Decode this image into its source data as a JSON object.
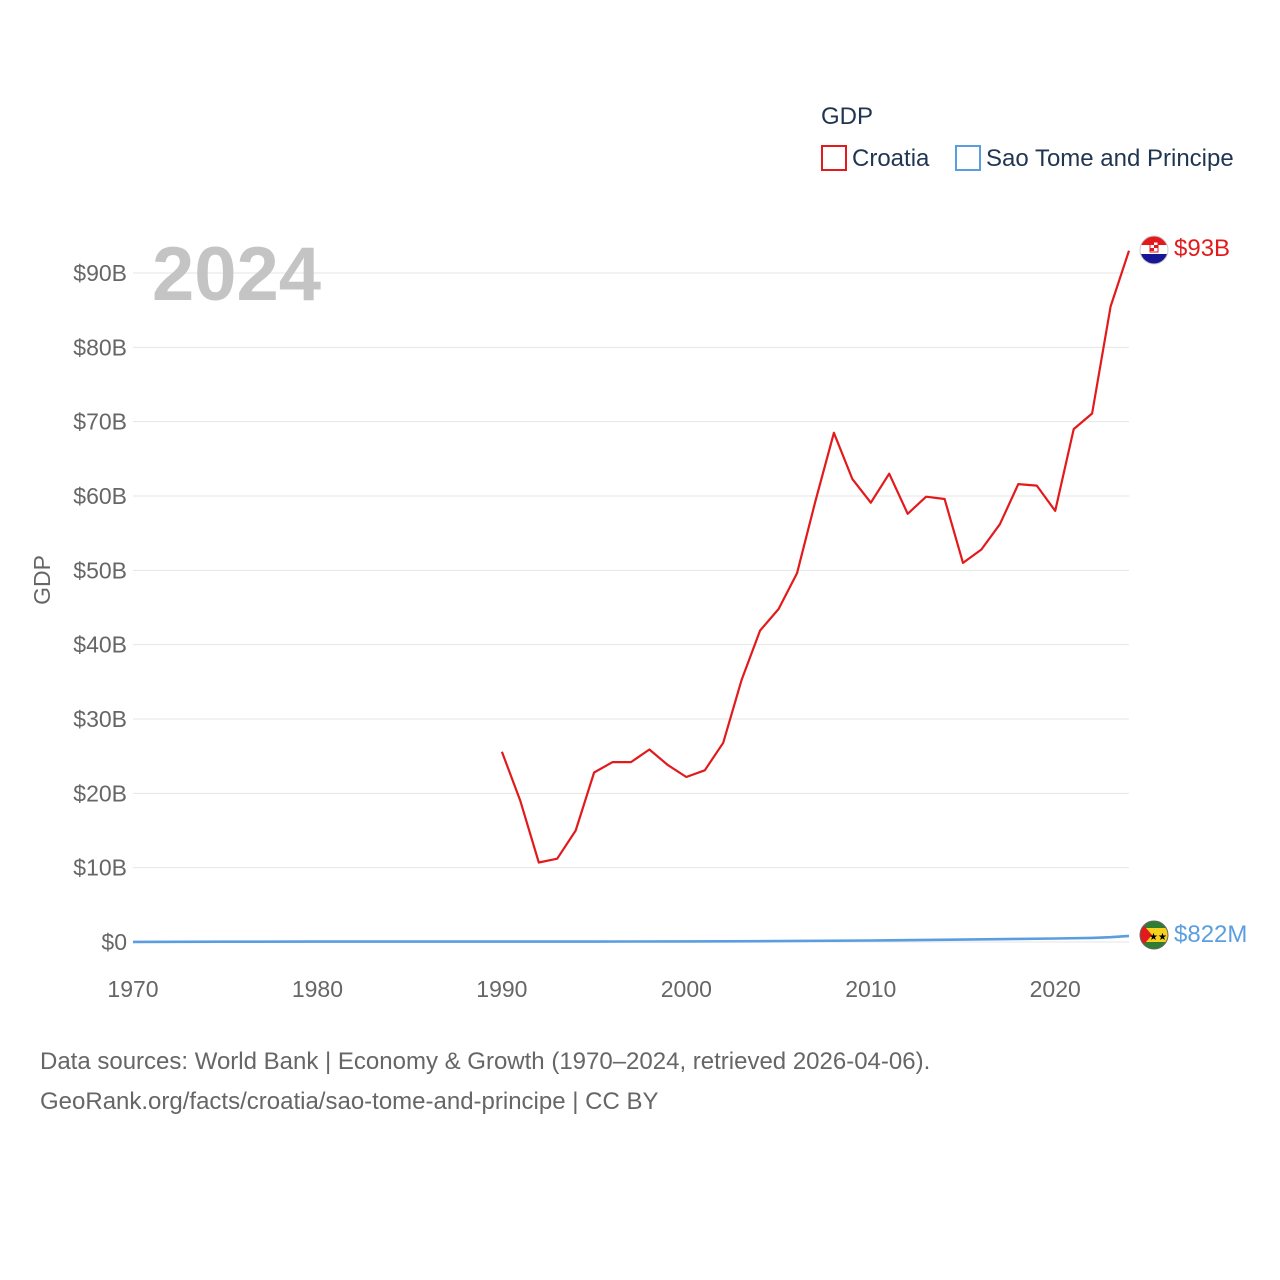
{
  "chart_data": {
    "type": "line",
    "legend_title": "GDP",
    "ylabel": "GDP",
    "year_label": "2024",
    "xlim": [
      1970,
      2024
    ],
    "ylim": [
      0,
      90
    ],
    "x_ticks": [
      1970,
      1980,
      1990,
      2000,
      2010,
      2020
    ],
    "x_tick_labels": [
      "1970",
      "1980",
      "1990",
      "2000",
      "2010",
      "2020"
    ],
    "y_ticks": [
      0,
      10,
      20,
      30,
      40,
      50,
      60,
      70,
      80,
      90
    ],
    "y_tick_labels": [
      "$0",
      "$10B",
      "$20B",
      "$30B",
      "$40B",
      "$50B",
      "$60B",
      "$70B",
      "$80B",
      "$90B"
    ],
    "units": "billions USD",
    "series": [
      {
        "name": "Croatia",
        "color": "#e31a1c",
        "end_label": "$93B",
        "flag": "croatia-flag",
        "x": [
          1990,
          1991,
          1992,
          1993,
          1994,
          1995,
          1996,
          1997,
          1998,
          1999,
          2000,
          2001,
          2002,
          2003,
          2004,
          2005,
          2006,
          2007,
          2008,
          2009,
          2010,
          2011,
          2012,
          2013,
          2014,
          2015,
          2016,
          2017,
          2018,
          2019,
          2020,
          2021,
          2022,
          2023,
          2024
        ],
        "y": [
          25.6,
          19.0,
          10.7,
          11.2,
          15.0,
          22.8,
          24.2,
          24.2,
          25.9,
          23.8,
          22.2,
          23.1,
          26.8,
          35.3,
          41.9,
          44.8,
          49.6,
          59.3,
          68.5,
          62.3,
          59.1,
          63.0,
          57.6,
          59.9,
          59.6,
          51.0,
          52.8,
          56.2,
          61.6,
          61.4,
          58.0,
          69.0,
          71.1,
          85.5,
          93.0
        ]
      },
      {
        "name": "Sao Tome and Principe",
        "color": "#5b9ee0",
        "end_label": "$822M",
        "flag": "sao-tome-flag",
        "x": [
          1970,
          1975,
          1980,
          1985,
          1990,
          1995,
          2000,
          2005,
          2010,
          2015,
          2018,
          2020,
          2022,
          2023,
          2024
        ],
        "y": [
          0.02,
          0.04,
          0.05,
          0.05,
          0.06,
          0.05,
          0.08,
          0.12,
          0.2,
          0.32,
          0.42,
          0.47,
          0.55,
          0.65,
          0.822
        ]
      }
    ]
  },
  "footer": {
    "line1": "Data sources: World Bank | Economy & Growth (1970–2024, retrieved 2026-04-06).",
    "line2": "GeoRank.org/facts/croatia/sao-tome-and-principe | CC BY"
  }
}
